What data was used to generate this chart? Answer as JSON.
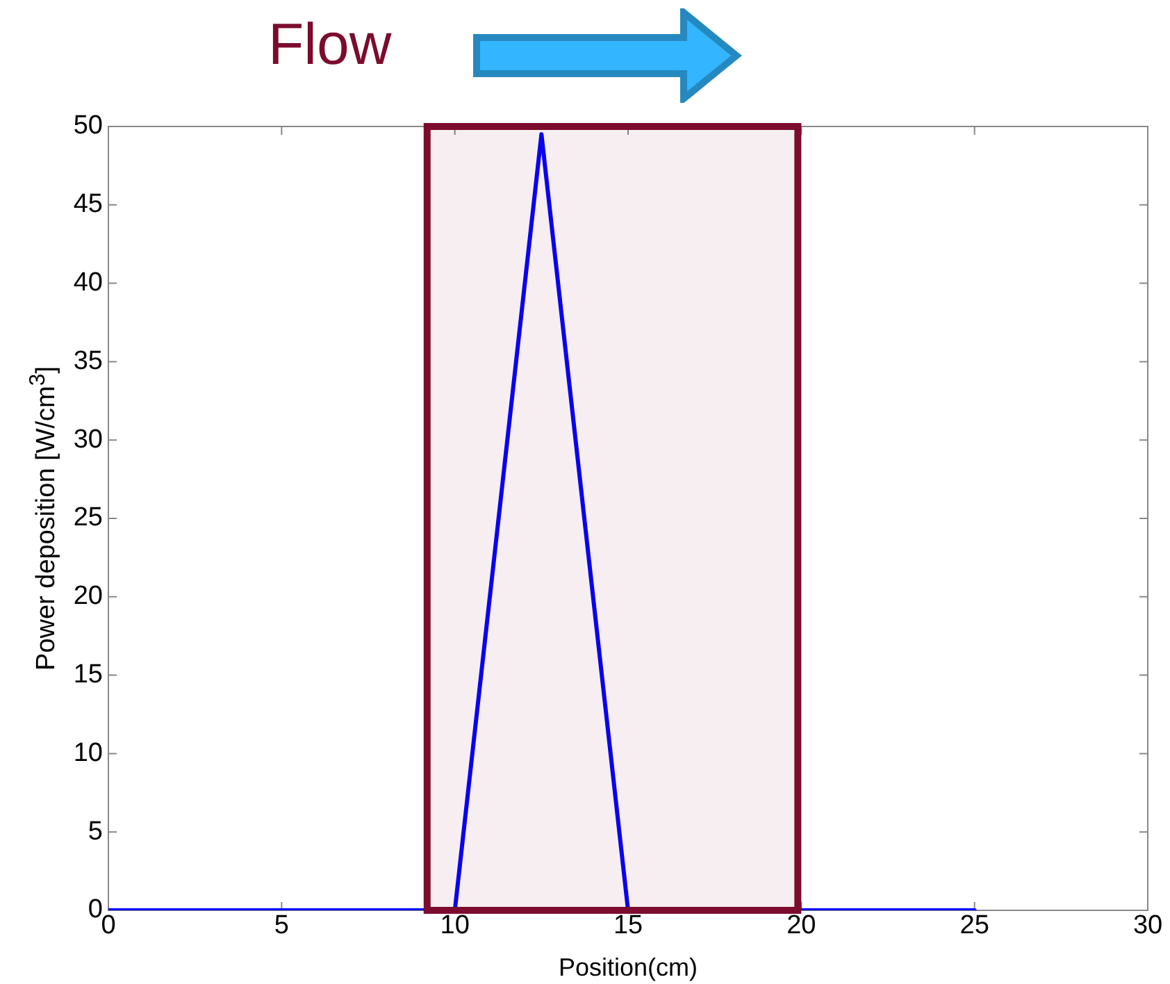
{
  "chart_data": {
    "type": "line",
    "xlabel": "Position(cm)",
    "ylabel": "Power deposition [W/cm$^{3}$]",
    "annotations": [
      "Flow"
    ],
    "x": [
      0,
      10,
      12.5,
      15,
      25
    ],
    "series": [
      {
        "color": "#0000ff",
        "values": [
          0,
          0,
          49.5,
          0,
          0
        ]
      }
    ],
    "xlim": [
      0,
      30
    ],
    "xticks": [
      0,
      5,
      10,
      15,
      20,
      25,
      30
    ],
    "ylim": [
      0,
      50
    ],
    "yticks": [
      0,
      5,
      10,
      15,
      20,
      25,
      30,
      35,
      40,
      45,
      50
    ],
    "bands": [
      {
        "axis": "x",
        "from": 9.2,
        "to": 19.9,
        "color": "#7b0c2e"
      }
    ],
    "grid": false,
    "legend": false,
    "marker": "none",
    "line_style": "solid"
  }
}
